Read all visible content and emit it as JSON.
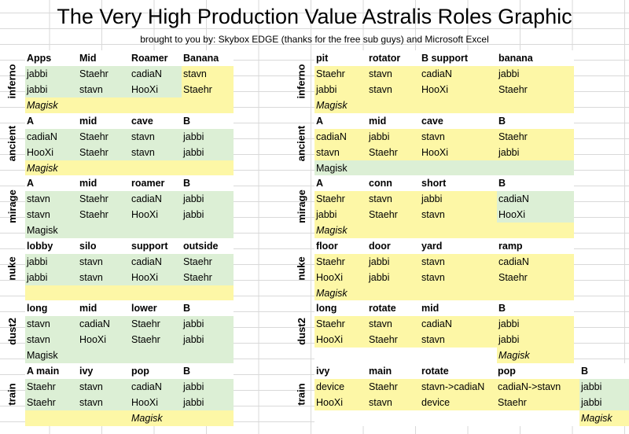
{
  "title": "The Very High Production Value Astralis Roles Graphic",
  "subtitle": "brought to you by: Skybox EDGE (thanks for the free sub guys) and Microsoft Excel",
  "colors": {
    "green": "#dcefd5",
    "yellow": "#fdf7a6"
  },
  "left": [
    {
      "map": "inferno",
      "headers": [
        "Apps",
        "Mid",
        "Roamer",
        "Banana"
      ],
      "rows": [
        [
          "jabbi",
          "Staehr",
          "cadiaN",
          "stavn"
        ],
        [
          "jabbi",
          "stavn",
          "HooXi",
          "Staehr"
        ]
      ],
      "coach": "Magisk"
    },
    {
      "map": "ancient",
      "headers": [
        "A",
        "mid",
        "cave",
        "B"
      ],
      "rows": [
        [
          "cadiaN",
          "Staehr",
          "stavn",
          "jabbi"
        ],
        [
          "HooXi",
          "Staehr",
          "stavn",
          "jabbi"
        ]
      ],
      "coach": "Magisk"
    },
    {
      "map": "mirage",
      "headers": [
        "A",
        "mid",
        "roamer",
        "B"
      ],
      "rows": [
        [
          "stavn",
          "Staehr",
          "cadiaN",
          "jabbi"
        ],
        [
          "stavn",
          "Staehr",
          "HooXi",
          "jabbi"
        ]
      ],
      "coach": "Magisk"
    },
    {
      "map": "nuke",
      "headers": [
        "lobby",
        "silo",
        "support",
        "outside"
      ],
      "rows": [
        [
          "jabbi",
          "stavn",
          "cadiaN",
          "Staehr"
        ],
        [
          "jabbi",
          "stavn",
          "HooXi",
          "Staehr"
        ]
      ],
      "coach": ""
    },
    {
      "map": "dust2",
      "headers": [
        "long",
        "mid",
        "lower",
        "B"
      ],
      "rows": [
        [
          "stavn",
          "cadiaN",
          "Staehr",
          "jabbi"
        ],
        [
          "stavn",
          "HooXi",
          "Staehr",
          "jabbi"
        ]
      ],
      "coach": "Magisk"
    },
    {
      "map": "train",
      "headers": [
        "A main",
        "ivy",
        "pop",
        "B"
      ],
      "rows": [
        [
          "Staehr",
          "stavn",
          "cadiaN",
          "jabbi"
        ],
        [
          "Staehr",
          "stavn",
          "HooXi",
          "jabbi"
        ]
      ],
      "coach": "Magisk"
    }
  ],
  "right": [
    {
      "map": "inferno",
      "headers": [
        "pit",
        "rotator",
        "B support",
        "banana"
      ],
      "rows": [
        [
          "Staehr",
          "stavn",
          "cadiaN",
          "jabbi"
        ],
        [
          "jabbi",
          "stavn",
          "HooXi",
          "Staehr"
        ]
      ],
      "coach": "Magisk"
    },
    {
      "map": "ancient",
      "headers": [
        "A",
        "mid",
        "cave",
        "B"
      ],
      "rows": [
        [
          "cadiaN",
          "jabbi",
          "stavn",
          "Staehr"
        ],
        [
          "stavn",
          "Staehr",
          "HooXi",
          "jabbi"
        ]
      ],
      "coach": "Magisk"
    },
    {
      "map": "mirage",
      "headers": [
        "A",
        "conn",
        "short",
        "B"
      ],
      "rows": [
        [
          "Staehr",
          "stavn",
          "jabbi",
          "cadiaN"
        ],
        [
          "jabbi",
          "Staehr",
          "stavn",
          "HooXi"
        ]
      ],
      "coach": "Magisk"
    },
    {
      "map": "nuke",
      "headers": [
        "floor",
        "door",
        "yard",
        "ramp"
      ],
      "rows": [
        [
          "Staehr",
          "jabbi",
          "stavn",
          "cadiaN"
        ],
        [
          "HooXi",
          "jabbi",
          "stavn",
          "Staehr"
        ]
      ],
      "coach": "Magisk"
    },
    {
      "map": "dust2",
      "headers": [
        "long",
        "rotate",
        "mid",
        "B"
      ],
      "rows": [
        [
          "Staehr",
          "stavn",
          "cadiaN",
          "jabbi"
        ],
        [
          "HooXi",
          "Staehr",
          "stavn",
          "jabbi"
        ]
      ],
      "coach": "Magisk"
    },
    {
      "map": "train",
      "headers": [
        "ivy",
        "main",
        "rotate",
        "pop",
        "B"
      ],
      "rows": [
        [
          "device",
          "Staehr",
          "stavn->cadiaN",
          "cadiaN->stavn",
          "jabbi"
        ],
        [
          "HooXi",
          "stavn",
          "device",
          "Staehr",
          "jabbi"
        ]
      ],
      "coach": "Magisk"
    }
  ]
}
